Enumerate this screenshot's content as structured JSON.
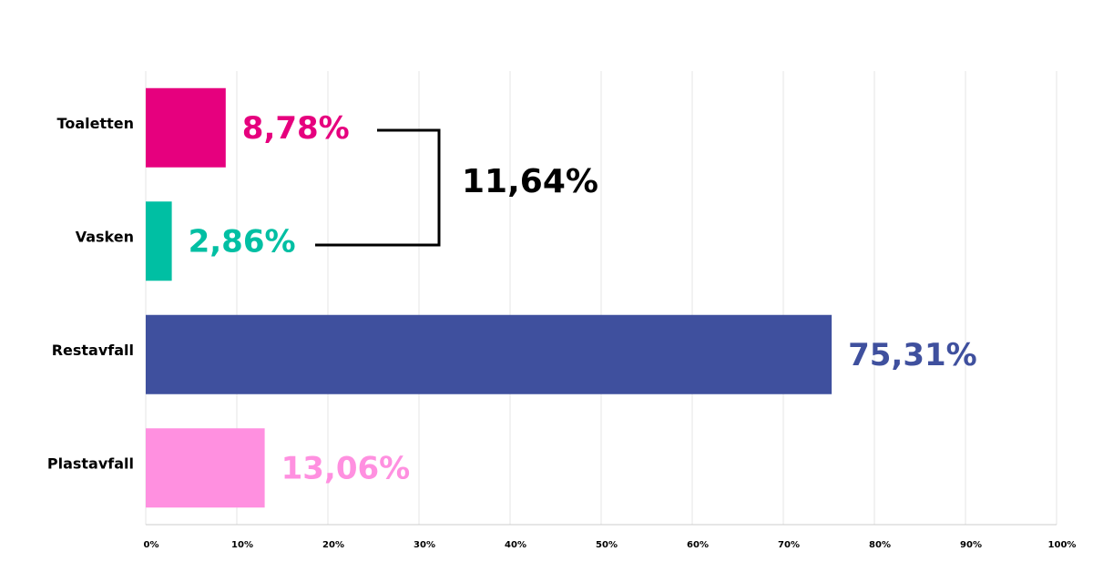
{
  "chart_data": {
    "type": "barh",
    "categories": [
      "Toaletten",
      "Vasken",
      "Restavfall",
      "Plastavfall"
    ],
    "values": [
      8.78,
      2.86,
      75.31,
      13.06
    ],
    "value_labels": [
      "8,78%",
      "2,86%",
      "75,31%",
      "13,06%"
    ],
    "colors": [
      "#e6007e",
      "#00bfa3",
      "#3f509e",
      "#ff90e0"
    ],
    "annotation": "11,64%",
    "xlim": [
      0,
      100
    ],
    "xticks": [
      {
        "value": 0,
        "label": "0%"
      },
      {
        "value": 10,
        "label": "10%"
      },
      {
        "value": 20,
        "label": "20%"
      },
      {
        "value": 30,
        "label": "30%"
      },
      {
        "value": 40,
        "label": "40%"
      },
      {
        "value": 50,
        "label": "50%"
      },
      {
        "value": 60,
        "label": "60%"
      },
      {
        "value": 70,
        "label": "70%"
      },
      {
        "value": 80,
        "label": "80%"
      },
      {
        "value": 90,
        "label": "90%"
      },
      {
        "value": 100,
        "label": "100%"
      }
    ],
    "grid": true
  }
}
